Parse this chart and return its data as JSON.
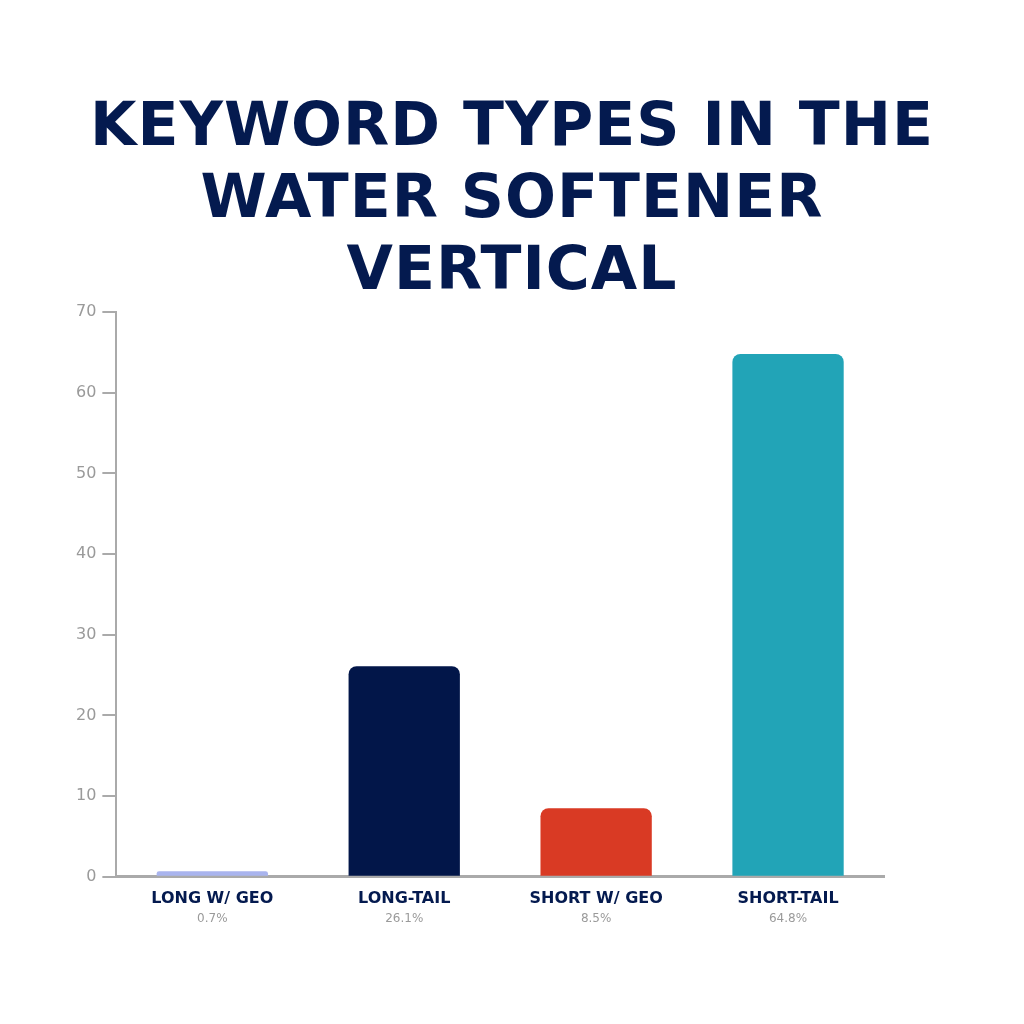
{
  "chart_data": {
    "type": "bar",
    "title": "KEYWORD TYPES IN THE WATER SOFTENER VERTICAL",
    "categories": [
      "LONG W/ GEO",
      "LONG-TAIL",
      "SHORT W/ GEO",
      "SHORT-TAIL"
    ],
    "values": [
      0.7,
      26.1,
      8.5,
      64.8
    ],
    "colors": [
      "#a9b4ee",
      "#021649",
      "#d93a24",
      "#22a4b7"
    ],
    "value_labels": [
      "0.7%",
      "26.1%",
      "8.5%",
      "64.8%"
    ],
    "ylim": [
      0,
      70
    ],
    "yticks": [
      0,
      10,
      20,
      30,
      40,
      50,
      60,
      70
    ],
    "grid": false,
    "legend": false
  }
}
